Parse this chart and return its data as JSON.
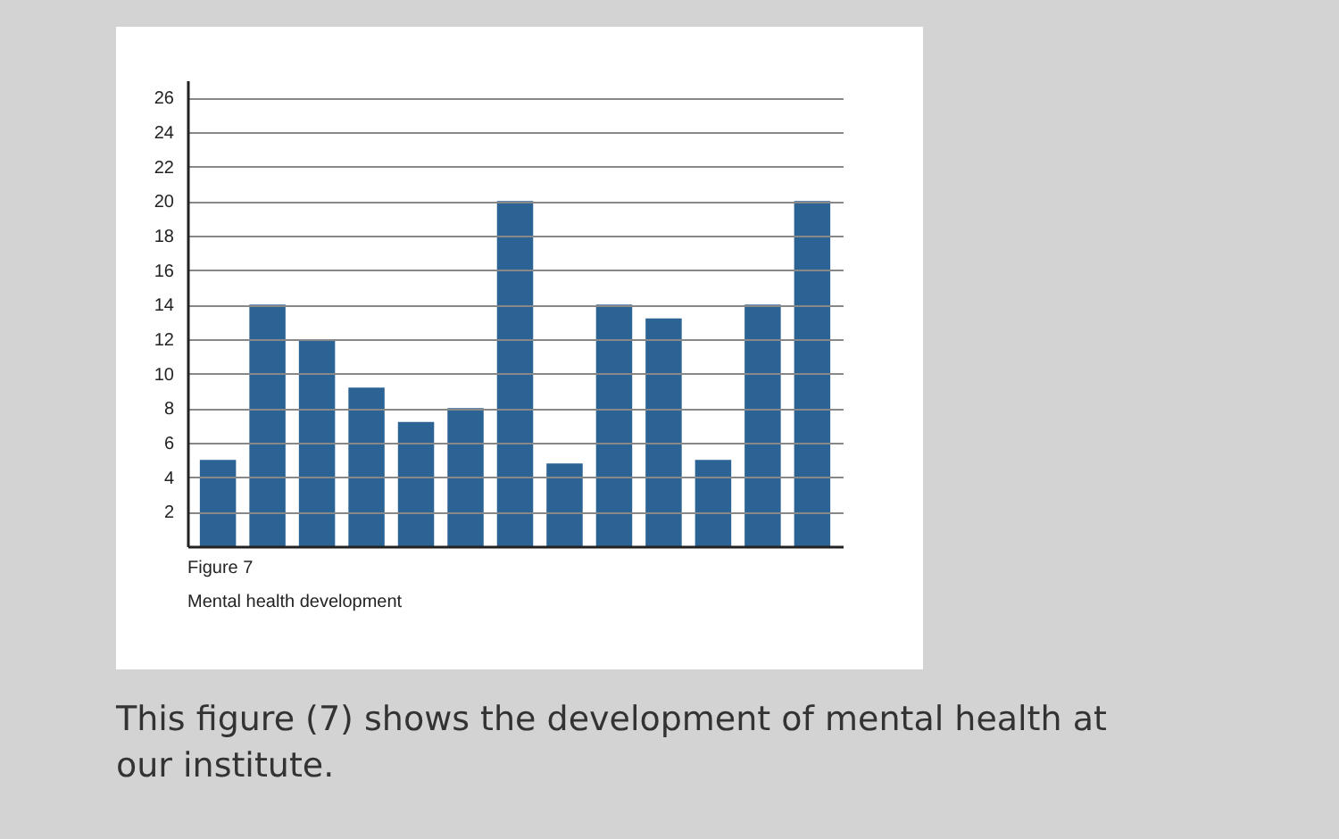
{
  "chart_data": {
    "type": "bar",
    "categories": [
      null,
      null,
      null,
      null,
      null,
      null,
      null,
      null,
      null,
      null,
      null,
      null,
      null
    ],
    "values": [
      5,
      14,
      12,
      9.2,
      7.2,
      8,
      20,
      4.8,
      14,
      13.2,
      5,
      14,
      20
    ],
    "color": "#2b6394",
    "ylim": [
      0,
      27
    ],
    "yticks": [
      2,
      4,
      6,
      8,
      10,
      12,
      14,
      16,
      18,
      20,
      22,
      24,
      26
    ],
    "grid": "y",
    "tick_labels": "y",
    "annotations": [
      "Figure 7",
      "Mental health development",
      "This figure (7) shows the development of mental health at our institute."
    ]
  }
}
